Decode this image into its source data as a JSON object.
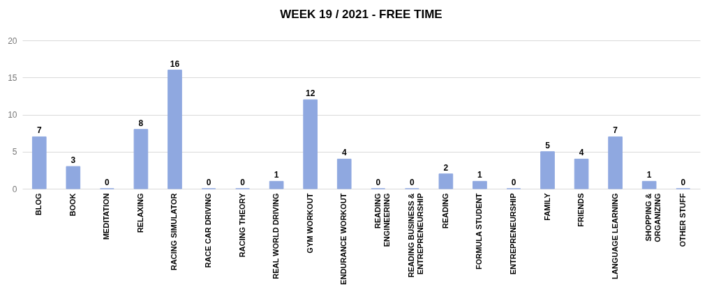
{
  "chart_data": {
    "type": "bar",
    "title": "WEEK 19  / 2021 - FREE TIME",
    "categories": [
      "BLOG",
      "BOOK",
      "MEDITATION",
      "RELAXING",
      "RACING SIMULATOR",
      "RACE CAR DRIVING",
      "RACING THEORY",
      "REAL WORLD DRIVING",
      "GYM WORKOUT",
      "ENDURANCE WORKOUT",
      "READING ENGINEERING",
      "READING BUSINESS & ENTREPRENEURSHIP",
      "READING",
      "FORMULA STUDENT",
      "ENTREPRENEURSHIP",
      "FAMILY",
      "FRIENDS",
      "LANGUAGE LEARNING",
      "SHOPPING & ORGANIZING",
      "OTHER STUFF"
    ],
    "values": [
      7,
      3,
      0,
      8,
      16,
      0,
      0,
      1,
      12,
      4,
      0,
      0,
      2,
      1,
      0,
      5,
      4,
      7,
      1,
      0
    ],
    "color": "#8fa8e0",
    "ylim": [
      0,
      20
    ],
    "yticks": [
      0,
      5,
      10,
      15,
      20
    ],
    "grid": "y",
    "data_labels": true
  }
}
